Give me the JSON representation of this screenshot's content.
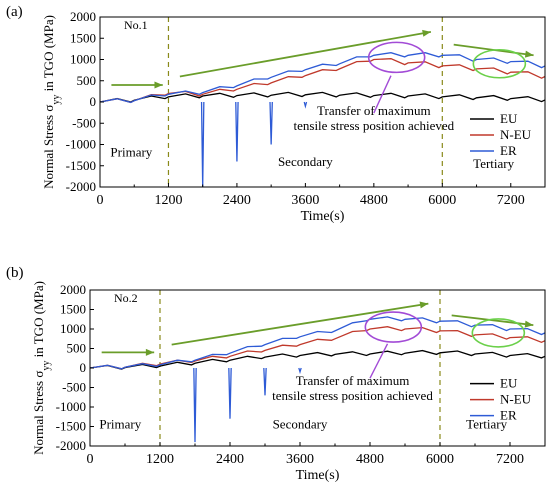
{
  "chart_data": [
    {
      "panel_label": "(a)",
      "sample_label": "No.1",
      "type": "line",
      "xlabel": "Time(s)",
      "ylabel": "Normal Stress σyy in TGO (MPa)",
      "ylabel_main": "Normal Stress σ",
      "ylabel_sub": "yy",
      "ylabel_rest": " in TGO (MPa)",
      "xlim": [
        0,
        7800
      ],
      "ylim": [
        -2000,
        2000
      ],
      "xticks": [
        0,
        1200,
        2400,
        3600,
        4800,
        6000,
        7200
      ],
      "yticks": [
        -2000,
        -1500,
        -1000,
        -500,
        0,
        500,
        1000,
        1500,
        2000
      ],
      "x_ticks_minor": [
        600,
        1800,
        3000,
        4200,
        5400,
        6600
      ],
      "stage_lines": [
        1200,
        6000
      ],
      "stages": [
        {
          "name": "Primary",
          "x": 550,
          "y": -1280
        },
        {
          "name": "Secondary",
          "x": 3600,
          "y": -1500
        },
        {
          "name": "Tertiary",
          "x": 6900,
          "y": -1550
        }
      ],
      "annotation": {
        "lines": [
          "Transfer of maximum",
          "tensile stress position achieved"
        ],
        "x": 4800,
        "y": -300
      },
      "legend": {
        "placement": "right",
        "entries": [
          "EU",
          "N-EU",
          "ER"
        ]
      },
      "series": [
        {
          "name": "EU",
          "color": "#000000",
          "x": [
            0,
            600,
            1200,
            1800,
            2400,
            3000,
            3600,
            4200,
            4800,
            5400,
            6000,
            6600,
            7200,
            7800
          ],
          "values": [
            0,
            40,
            120,
            140,
            150,
            160,
            170,
            160,
            150,
            140,
            120,
            100,
            80,
            50
          ]
        },
        {
          "name": "N-EU",
          "color": "#c0392b",
          "x": [
            0,
            600,
            1200,
            1800,
            2400,
            3000,
            3600,
            4200,
            4800,
            5400,
            6000,
            6600,
            7200,
            7800
          ],
          "values": [
            0,
            30,
            200,
            180,
            300,
            450,
            620,
            780,
            1000,
            920,
            850,
            780,
            700,
            600
          ]
        },
        {
          "name": "ER",
          "color": "#2e5bd6",
          "x": [
            0,
            600,
            1200,
            1800,
            2400,
            3000,
            3600,
            4200,
            4800,
            5400,
            6000,
            6600,
            7200,
            7800
          ],
          "values": [
            0,
            30,
            180,
            220,
            380,
            580,
            760,
            900,
            1100,
            1100,
            1100,
            1000,
            950,
            850
          ]
        }
      ],
      "ER_dips": [
        {
          "x": 1800,
          "value": -2000
        },
        {
          "x": 2400,
          "value": -1400
        },
        {
          "x": 3000,
          "value": -1000
        },
        {
          "x": 3600,
          "value": -100
        }
      ]
    },
    {
      "panel_label": "(b)",
      "sample_label": "No.2",
      "type": "line",
      "xlabel": "Time(s)",
      "ylabel": "Normal Stress σyy in TGO (MPa)",
      "ylabel_main": "Normal Stress σ",
      "ylabel_sub": "yy",
      "ylabel_rest": " in TGO (MPa)",
      "xlim": [
        0,
        7800
      ],
      "ylim": [
        -2000,
        2000
      ],
      "xticks": [
        0,
        1200,
        2400,
        3600,
        4800,
        6000,
        7200
      ],
      "yticks": [
        -2000,
        -1500,
        -1000,
        -500,
        0,
        500,
        1000,
        1500,
        2000
      ],
      "x_ticks_minor": [
        600,
        1800,
        3000,
        4200,
        5400,
        6600
      ],
      "stage_lines": [
        1200,
        6000
      ],
      "stages": [
        {
          "name": "Primary",
          "x": 520,
          "y": -1550
        },
        {
          "name": "Secondary",
          "x": 3600,
          "y": -1550
        },
        {
          "name": "Tertiary",
          "x": 6800,
          "y": -1550
        }
      ],
      "annotation": {
        "lines": [
          "Transfer of maximum",
          "tensile stress position achieved"
        ],
        "x": 4500,
        "y": -440
      },
      "legend": {
        "placement": "right",
        "entries": [
          "EU",
          "N-EU",
          "ER"
        ]
      },
      "series": [
        {
          "name": "EU",
          "color": "#000000",
          "x": [
            0,
            600,
            1200,
            1800,
            2400,
            3000,
            3600,
            4200,
            4800,
            5400,
            6000,
            6600,
            7200,
            7800
          ],
          "values": [
            0,
            10,
            50,
            120,
            200,
            280,
            320,
            350,
            360,
            380,
            390,
            360,
            320,
            300
          ]
        },
        {
          "name": "N-EU",
          "color": "#c0392b",
          "x": [
            0,
            600,
            1200,
            1800,
            2400,
            3000,
            3600,
            4200,
            4800,
            5400,
            6000,
            6600,
            7200,
            7800
          ],
          "values": [
            0,
            20,
            100,
            180,
            300,
            450,
            600,
            750,
            1000,
            1000,
            950,
            850,
            780,
            700
          ]
        },
        {
          "name": "ER",
          "color": "#2e5bd6",
          "x": [
            0,
            600,
            1200,
            1800,
            2400,
            3000,
            3600,
            4200,
            4800,
            5400,
            6000,
            6600,
            7200,
            7800
          ],
          "values": [
            0,
            20,
            80,
            200,
            380,
            600,
            800,
            950,
            1250,
            1250,
            1200,
            1100,
            1000,
            900
          ]
        }
      ],
      "ER_dips": [
        {
          "x": 1800,
          "value": -1900
        },
        {
          "x": 2400,
          "value": -1300
        },
        {
          "x": 3000,
          "value": -700
        },
        {
          "x": 3600,
          "value": -100
        }
      ]
    }
  ]
}
